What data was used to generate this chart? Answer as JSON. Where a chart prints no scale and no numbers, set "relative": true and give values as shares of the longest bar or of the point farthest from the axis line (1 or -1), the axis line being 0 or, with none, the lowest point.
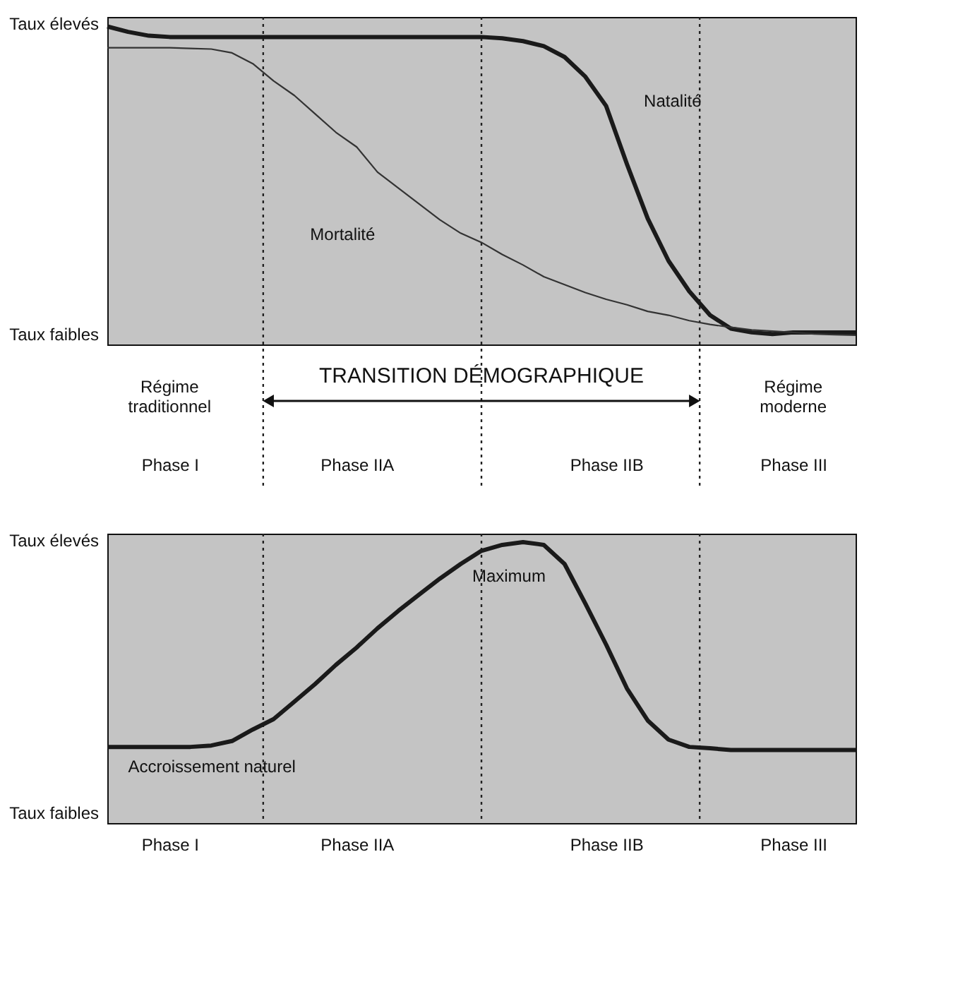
{
  "chart_data": [
    {
      "type": "line",
      "relative": true,
      "tick_labels": "x",
      "categories": [
        null,
        null,
        null,
        "Phase I",
        null,
        null,
        null,
        null,
        null,
        null,
        null,
        null,
        "Phase IIA",
        null,
        null,
        null,
        null,
        null,
        null,
        null,
        null,
        null,
        null,
        null,
        "Phase IIB",
        null,
        null,
        null,
        null,
        null,
        null,
        null,
        null,
        "Phase III",
        null,
        null,
        null
      ],
      "series": [
        {
          "name": "Natalité",
          "color": "#1a1a1a",
          "values": [
            1,
            0.983,
            0.971,
            0.967,
            0.967,
            0.967,
            0.967,
            0.967,
            0.967,
            0.967,
            0.967,
            0.967,
            0.967,
            0.967,
            0.967,
            0.967,
            0.967,
            0.967,
            0.967,
            0.963,
            0.954,
            0.938,
            0.904,
            0.842,
            0.75,
            0.567,
            0.396,
            0.263,
            0.167,
            0.092,
            0.05,
            0.038,
            0.033,
            0.038,
            0.038,
            0.038,
            0.038
          ]
        },
        {
          "name": "Mortalité",
          "color": "#333333",
          "values": [
            0.933,
            0.933,
            0.933,
            0.933,
            0.931,
            0.929,
            0.917,
            0.883,
            0.829,
            0.783,
            0.725,
            0.667,
            0.621,
            0.542,
            0.492,
            0.442,
            0.392,
            0.35,
            0.321,
            0.283,
            0.25,
            0.213,
            0.188,
            0.163,
            0.142,
            0.125,
            0.104,
            0.092,
            0.075,
            0.063,
            0.054,
            0.046,
            0.042,
            0.038,
            0.033,
            0.031,
            0.029
          ]
        }
      ],
      "annotations": [
        "Taux élevés",
        "Taux faibles",
        "Régime traditionnel",
        "TRANSITION DÉMOGRAPHIQUE",
        "Régime moderne"
      ]
    },
    {
      "type": "line",
      "relative": true,
      "tick_labels": "x",
      "categories": [
        null,
        null,
        null,
        "Phase I",
        null,
        null,
        null,
        null,
        null,
        null,
        null,
        null,
        "Phase IIA",
        null,
        null,
        null,
        null,
        null,
        null,
        null,
        null,
        null,
        null,
        null,
        "Phase IIB",
        null,
        null,
        null,
        null,
        null,
        null,
        null,
        null,
        "Phase III",
        null,
        null,
        null
      ],
      "series": [
        {
          "name": "Accroissement naturel",
          "color": "#1a1a1a",
          "values": [
            0.271,
            0.271,
            0.271,
            0.271,
            0.271,
            0.276,
            0.292,
            0.333,
            0.37,
            0.432,
            0.495,
            0.563,
            0.625,
            0.693,
            0.755,
            0.813,
            0.87,
            0.922,
            0.969,
            0.99,
            1,
            0.99,
            0.922,
            0.781,
            0.635,
            0.479,
            0.365,
            0.297,
            0.271,
            0.266,
            0.26,
            0.26,
            0.26,
            0.26,
            0.26,
            0.26,
            0.26
          ]
        }
      ],
      "annotations": [
        "Taux élevés",
        "Taux faibles",
        "Maximum"
      ]
    }
  ]
}
